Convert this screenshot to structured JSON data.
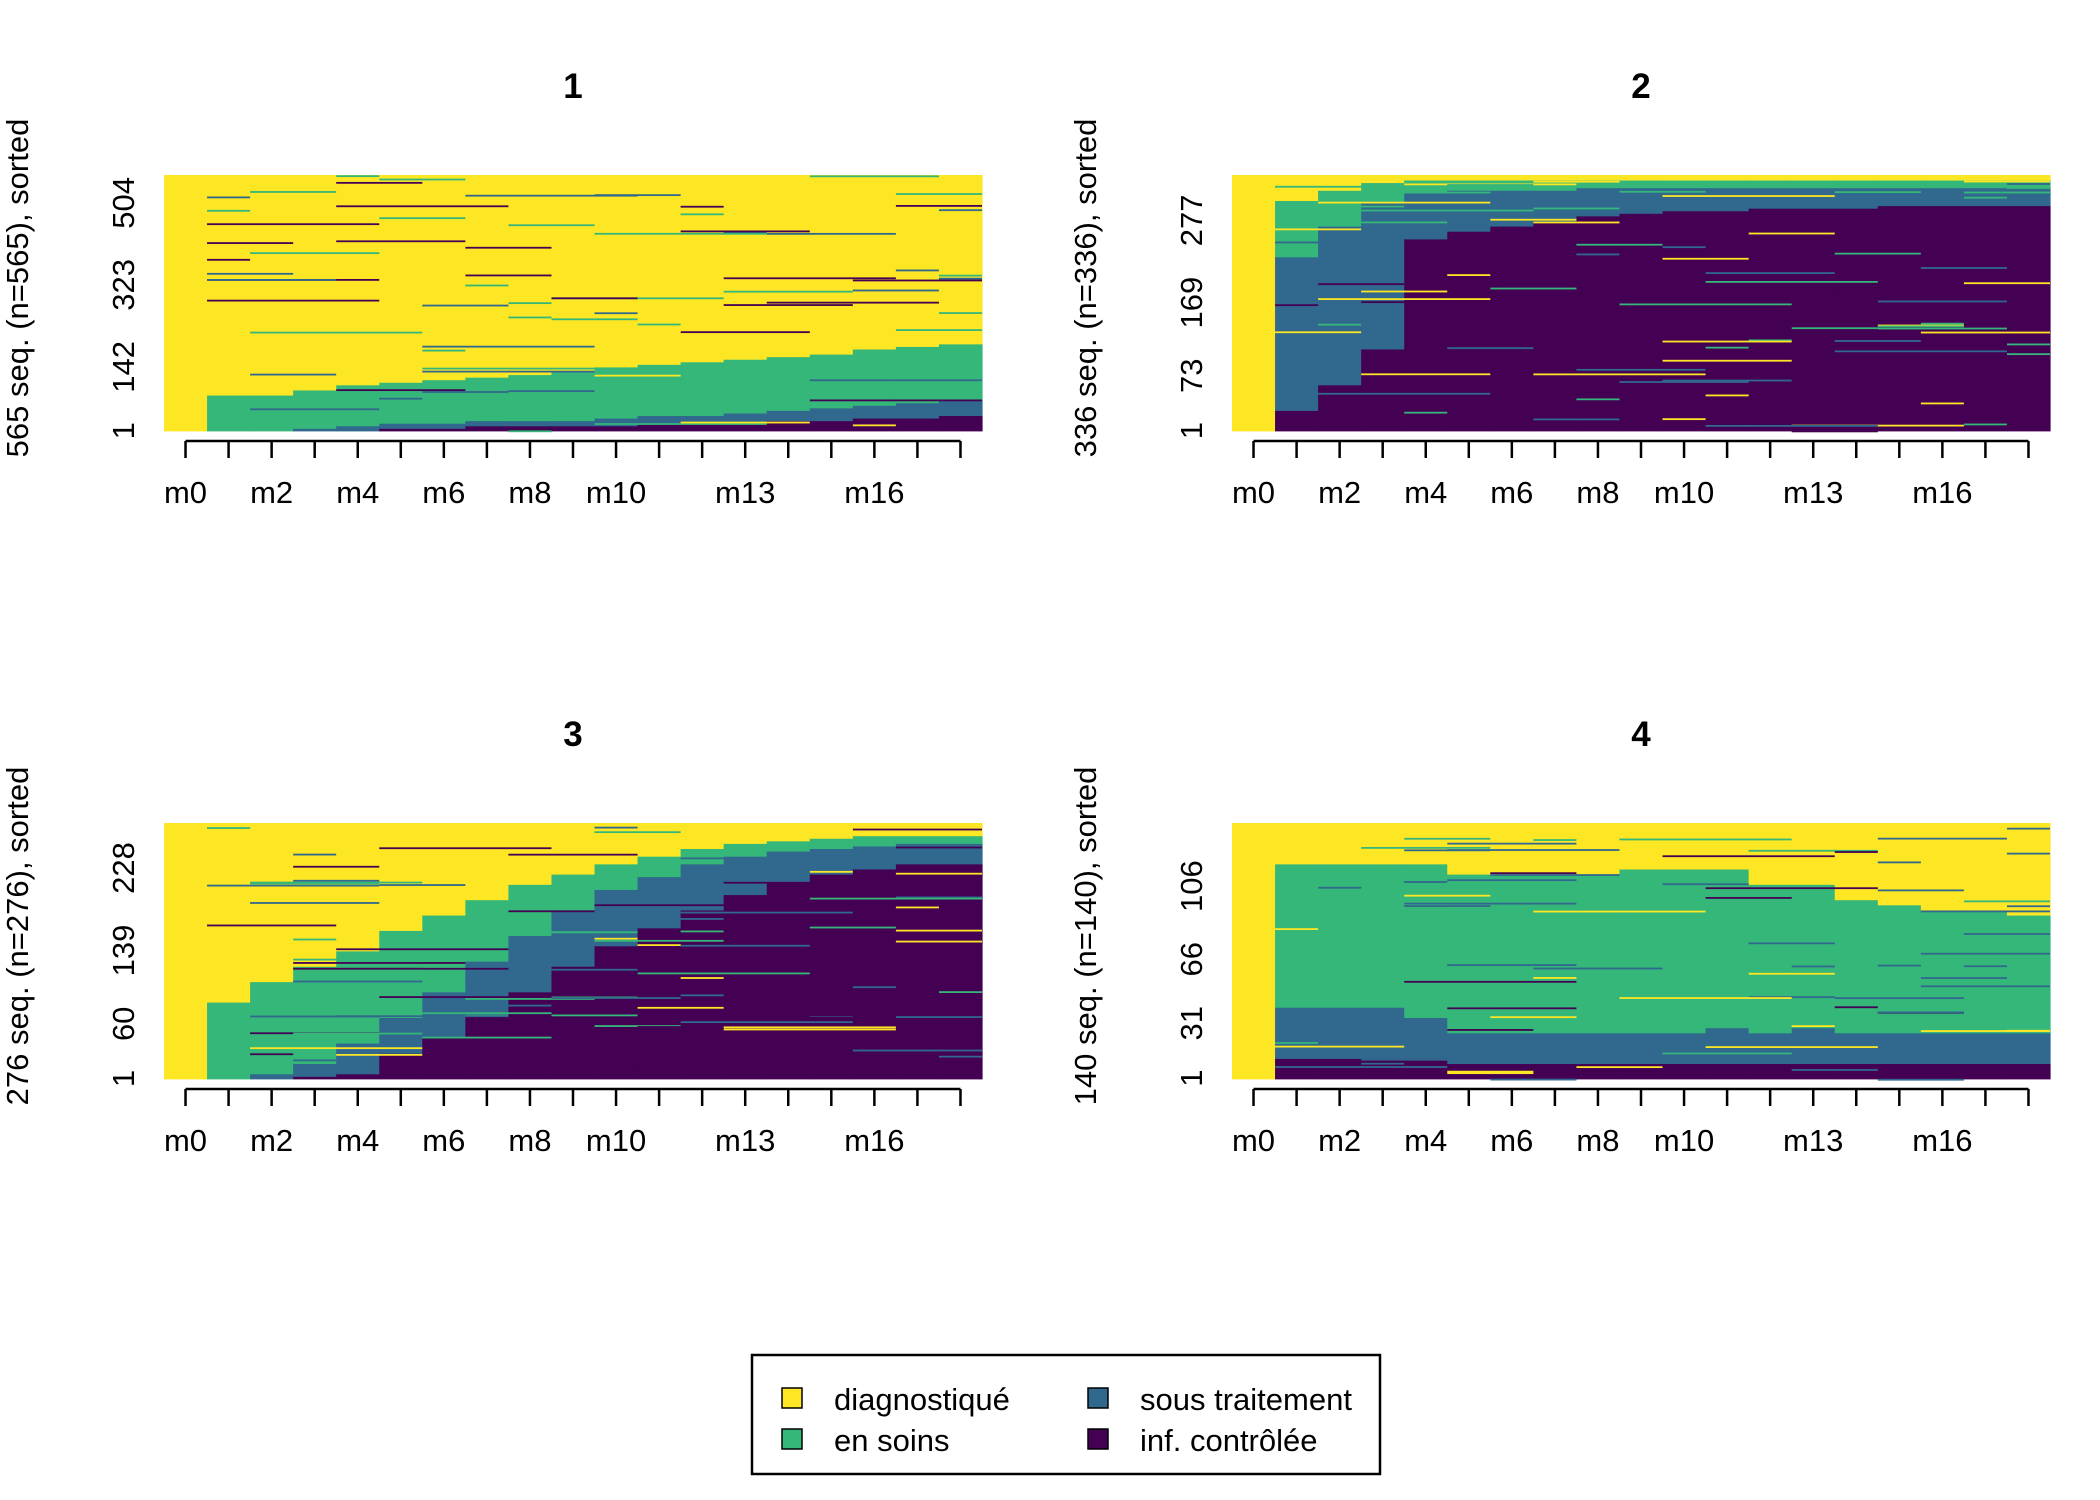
{
  "chart_data": {
    "type": "sequence-index-plot",
    "states": [
      {
        "key": "diag",
        "label": "diagnostiqué",
        "color": "#FDE725"
      },
      {
        "key": "soins",
        "label": "en soins",
        "color": "#35B779"
      },
      {
        "key": "trait",
        "label": "sous traitement",
        "color": "#31688E"
      },
      {
        "key": "ctrl",
        "label": "inf. contrôlée",
        "color": "#440154"
      }
    ],
    "x_tick_labels": [
      "m0",
      "m2",
      "m4",
      "m6",
      "m8",
      "m10",
      "m13",
      "m16"
    ],
    "n_months": 19,
    "panels": [
      {
        "title": "1",
        "ylabel": "565 seq. (n=565), sorted",
        "n": 565,
        "yticks": [
          "1",
          "142",
          "323",
          "504"
        ],
        "proportions_by_month": {
          "diag": [
            1.0,
            0.86,
            0.86,
            0.84,
            0.82,
            0.81,
            0.8,
            0.79,
            0.78,
            0.77,
            0.75,
            0.74,
            0.73,
            0.72,
            0.71,
            0.7,
            0.68,
            0.67,
            0.66
          ],
          "soins": [
            0.0,
            0.14,
            0.14,
            0.15,
            0.16,
            0.16,
            0.17,
            0.17,
            0.18,
            0.19,
            0.2,
            0.2,
            0.21,
            0.21,
            0.21,
            0.21,
            0.22,
            0.22,
            0.22
          ],
          "trait": [
            0.0,
            0.0,
            0.0,
            0.01,
            0.02,
            0.02,
            0.02,
            0.02,
            0.02,
            0.02,
            0.03,
            0.03,
            0.03,
            0.04,
            0.04,
            0.05,
            0.05,
            0.06,
            0.06
          ],
          "ctrl": [
            0.0,
            0.0,
            0.0,
            0.0,
            0.0,
            0.01,
            0.01,
            0.02,
            0.02,
            0.02,
            0.02,
            0.03,
            0.03,
            0.03,
            0.04,
            0.04,
            0.05,
            0.05,
            0.06
          ]
        }
      },
      {
        "title": "2",
        "ylabel": "336 seq. (n=336), sorted",
        "n": 336,
        "yticks": [
          "1",
          "73",
          "169",
          "277"
        ],
        "proportions_by_month": {
          "diag": [
            1.0,
            0.1,
            0.06,
            0.03,
            0.02,
            0.02,
            0.02,
            0.02,
            0.02,
            0.02,
            0.02,
            0.02,
            0.02,
            0.02,
            0.02,
            0.02,
            0.02,
            0.02,
            0.02
          ],
          "soins": [
            0.0,
            0.22,
            0.14,
            0.08,
            0.05,
            0.04,
            0.04,
            0.04,
            0.03,
            0.03,
            0.03,
            0.03,
            0.03,
            0.03,
            0.03,
            0.03,
            0.03,
            0.03,
            0.03
          ],
          "trait": [
            0.0,
            0.6,
            0.62,
            0.57,
            0.18,
            0.16,
            0.14,
            0.12,
            0.11,
            0.1,
            0.09,
            0.09,
            0.08,
            0.08,
            0.08,
            0.07,
            0.07,
            0.07,
            0.07
          ],
          "ctrl": [
            0.0,
            0.08,
            0.18,
            0.32,
            0.75,
            0.78,
            0.8,
            0.82,
            0.84,
            0.85,
            0.86,
            0.86,
            0.87,
            0.87,
            0.87,
            0.88,
            0.88,
            0.88,
            0.88
          ]
        }
      },
      {
        "title": "3",
        "ylabel": "276 seq. (n=276), sorted",
        "n": 276,
        "yticks": [
          "1",
          "60",
          "139",
          "228"
        ],
        "proportions_by_month": {
          "diag": [
            1.0,
            0.7,
            0.62,
            0.56,
            0.5,
            0.42,
            0.36,
            0.3,
            0.24,
            0.2,
            0.16,
            0.13,
            0.1,
            0.08,
            0.07,
            0.06,
            0.05,
            0.05,
            0.05
          ],
          "soins": [
            0.0,
            0.3,
            0.36,
            0.38,
            0.36,
            0.34,
            0.3,
            0.24,
            0.2,
            0.14,
            0.1,
            0.08,
            0.06,
            0.05,
            0.04,
            0.04,
            0.04,
            0.03,
            0.03
          ],
          "trait": [
            0.0,
            0.0,
            0.02,
            0.05,
            0.12,
            0.14,
            0.18,
            0.21,
            0.22,
            0.22,
            0.22,
            0.2,
            0.18,
            0.15,
            0.12,
            0.1,
            0.09,
            0.08,
            0.08
          ],
          "ctrl": [
            0.0,
            0.0,
            0.0,
            0.01,
            0.02,
            0.1,
            0.16,
            0.25,
            0.34,
            0.44,
            0.52,
            0.59,
            0.66,
            0.72,
            0.77,
            0.8,
            0.82,
            0.84,
            0.84
          ]
        }
      },
      {
        "title": "4",
        "ylabel": "140 seq. (n=140), sorted",
        "n": 140,
        "yticks": [
          "1",
          "31",
          "66",
          "106"
        ],
        "proportions_by_month": {
          "diag": [
            1.0,
            0.16,
            0.16,
            0.16,
            0.16,
            0.2,
            0.2,
            0.2,
            0.2,
            0.18,
            0.18,
            0.18,
            0.24,
            0.24,
            0.3,
            0.32,
            0.34,
            0.34,
            0.36
          ],
          "soins": [
            0.0,
            0.56,
            0.56,
            0.56,
            0.6,
            0.62,
            0.62,
            0.62,
            0.62,
            0.64,
            0.64,
            0.62,
            0.58,
            0.56,
            0.52,
            0.5,
            0.48,
            0.48,
            0.46
          ],
          "trait": [
            0.0,
            0.2,
            0.2,
            0.2,
            0.16,
            0.12,
            0.12,
            0.12,
            0.12,
            0.12,
            0.12,
            0.14,
            0.12,
            0.14,
            0.12,
            0.12,
            0.12,
            0.12,
            0.12
          ],
          "ctrl": [
            0.0,
            0.08,
            0.08,
            0.08,
            0.08,
            0.06,
            0.06,
            0.06,
            0.06,
            0.06,
            0.06,
            0.06,
            0.06,
            0.06,
            0.06,
            0.06,
            0.06,
            0.06,
            0.06
          ]
        }
      }
    ]
  }
}
